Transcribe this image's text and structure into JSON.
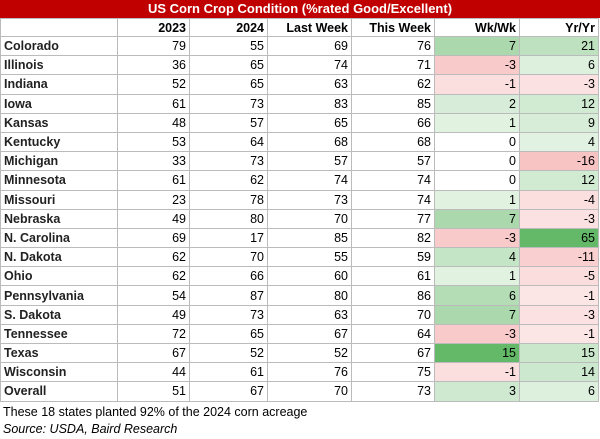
{
  "header": {
    "title": "US Corn Crop Condition (%rated Good/Excellent)"
  },
  "table": {
    "columns": [
      "2023",
      "2024",
      "Last Week",
      "This Week",
      "Wk/Wk",
      "Yr/Yr"
    ],
    "rows": [
      [
        "Colorado",
        79,
        55,
        69,
        76,
        7,
        21
      ],
      [
        "Illinois",
        36,
        65,
        74,
        71,
        -3,
        6
      ],
      [
        "Indiana",
        52,
        65,
        63,
        62,
        -1,
        -3
      ],
      [
        "Iowa",
        61,
        73,
        83,
        85,
        2,
        12
      ],
      [
        "Kansas",
        48,
        57,
        65,
        66,
        1,
        9
      ],
      [
        "Kentucky",
        53,
        64,
        68,
        68,
        0,
        4
      ],
      [
        "Michigan",
        33,
        73,
        57,
        57,
        0,
        -16
      ],
      [
        "Minnesota",
        61,
        62,
        74,
        74,
        0,
        12
      ],
      [
        "Missouri",
        23,
        78,
        73,
        74,
        1,
        -4
      ],
      [
        "Nebraska",
        49,
        80,
        70,
        77,
        7,
        -3
      ],
      [
        "N. Carolina",
        69,
        17,
        85,
        82,
        -3,
        65
      ],
      [
        "N. Dakota",
        62,
        70,
        55,
        59,
        4,
        -11
      ],
      [
        "Ohio",
        62,
        66,
        60,
        61,
        1,
        -5
      ],
      [
        "Pennsylvania",
        54,
        87,
        80,
        86,
        6,
        -1
      ],
      [
        "S. Dakota",
        49,
        73,
        63,
        70,
        7,
        -3
      ],
      [
        "Tennessee",
        72,
        65,
        67,
        64,
        -3,
        -1
      ],
      [
        "Texas",
        67,
        52,
        52,
        67,
        15,
        15
      ],
      [
        "Wisconsin",
        44,
        61,
        76,
        75,
        -1,
        14
      ],
      [
        "Overall",
        51,
        67,
        70,
        73,
        3,
        6
      ]
    ]
  },
  "footer": {
    "note": "These 18 states planted 92% of the 2024 corn acreage",
    "source": "Source: USDA, Baird Research"
  }
}
